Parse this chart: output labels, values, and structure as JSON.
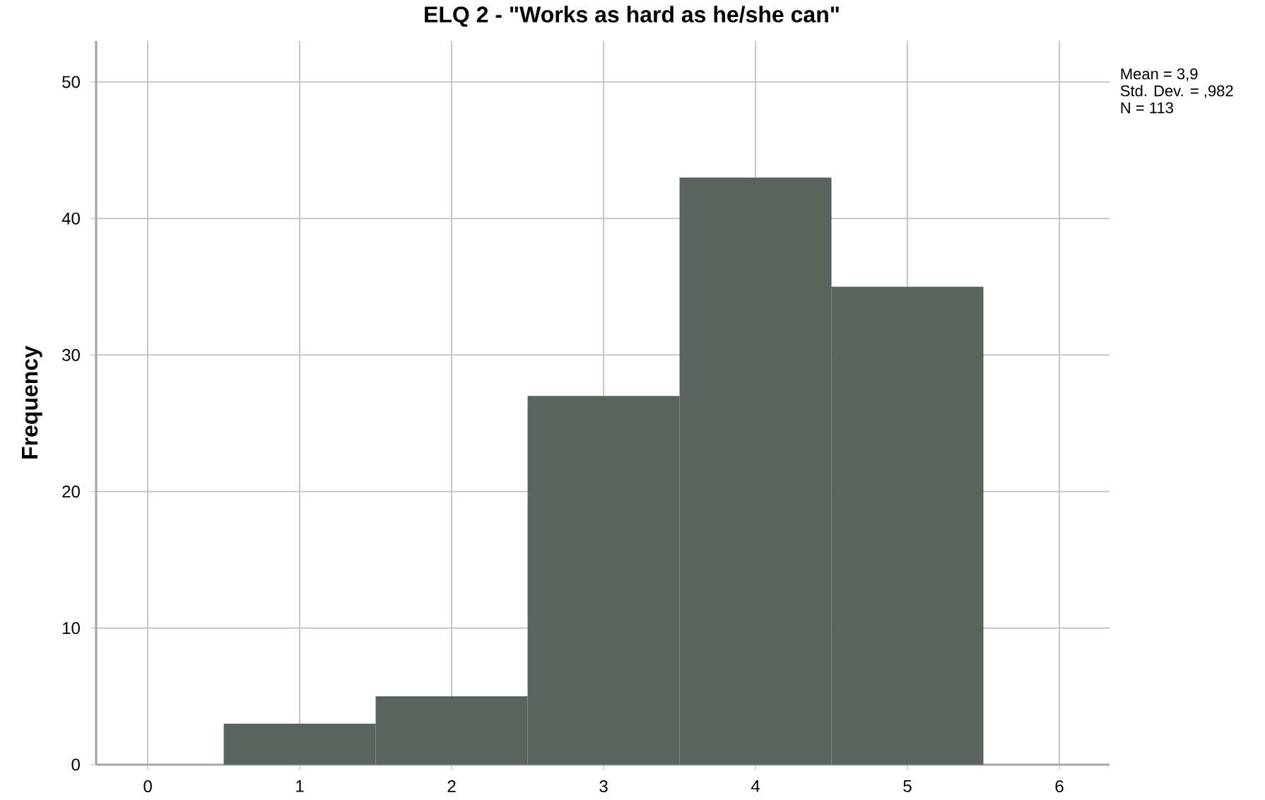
{
  "chart_data": {
    "type": "histogram",
    "title": "ELQ 2 - \"Works as hard as he/she can\"",
    "ylabel": "Frequency",
    "bins": [
      0.5,
      1.5,
      2.5,
      3.5,
      4.5,
      5.5
    ],
    "values": [
      3,
      5,
      27,
      43,
      35
    ],
    "color": "#5a635d",
    "xlim": [
      -0.34,
      6.33
    ],
    "ylim": [
      0,
      53
    ],
    "xticks": [
      0,
      1,
      2,
      3,
      4,
      5,
      6
    ],
    "yticks": [
      0,
      10,
      20,
      30,
      40,
      50
    ],
    "grid": true,
    "annotations": [
      "Mean = 3,9",
      "Std. Dev. = ,982",
      "N = 113"
    ]
  }
}
